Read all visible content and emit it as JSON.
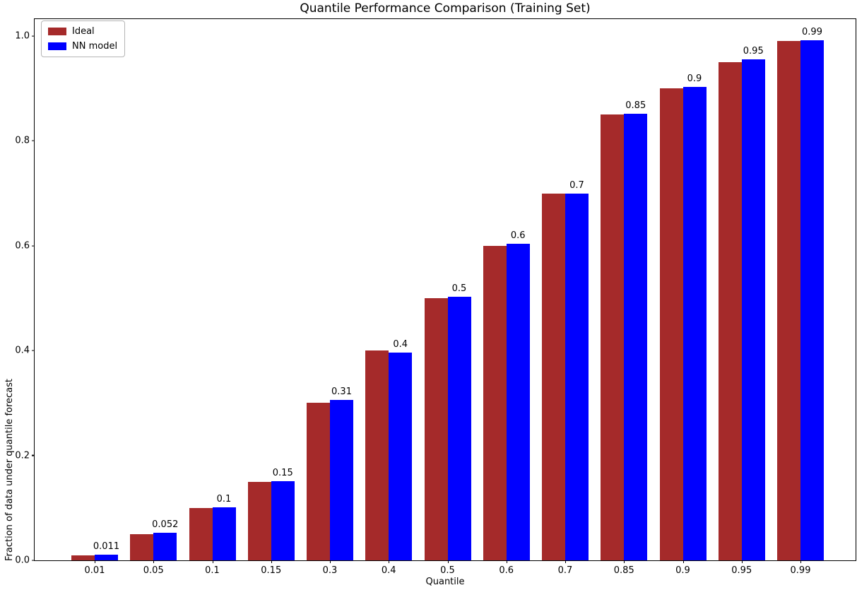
{
  "chart_data": {
    "type": "bar",
    "title": "Quantile Performance Comparison (Training Set)",
    "xlabel": "Quantile",
    "ylabel": "Fraction of data under quantile forecast",
    "categories": [
      "0.01",
      "0.05",
      "0.1",
      "0.15",
      "0.3",
      "0.4",
      "0.5",
      "0.6",
      "0.7",
      "0.85",
      "0.9",
      "0.95",
      "0.99"
    ],
    "series": [
      {
        "name": "Ideal",
        "color": "#A52A2A",
        "values": [
          0.01,
          0.05,
          0.1,
          0.15,
          0.3,
          0.4,
          0.5,
          0.6,
          0.7,
          0.85,
          0.9,
          0.95,
          0.99
        ]
      },
      {
        "name": "NN model",
        "color": "#0000FF",
        "values": [
          0.011,
          0.052,
          0.101,
          0.151,
          0.306,
          0.396,
          0.503,
          0.604,
          0.7,
          0.852,
          0.903,
          0.955,
          0.992
        ]
      }
    ],
    "bar_labels": [
      "0.011",
      "0.052",
      "0.1",
      "0.15",
      "0.31",
      "0.4",
      "0.5",
      "0.6",
      "0.7",
      "0.85",
      "0.9",
      "0.95",
      "0.99"
    ],
    "yticks": [
      {
        "value": 0.0,
        "label": "0.0"
      },
      {
        "value": 0.2,
        "label": "0.2"
      },
      {
        "value": 0.4,
        "label": "0.4"
      },
      {
        "value": 0.6,
        "label": "0.6"
      },
      {
        "value": 0.8,
        "label": "0.8"
      },
      {
        "value": 1.0,
        "label": "1.0"
      }
    ],
    "ylim": [
      0,
      1.0324
    ],
    "grid": false,
    "legend_position": "upper left",
    "axis_color": "#000000",
    "background_color": "#ffffff"
  }
}
